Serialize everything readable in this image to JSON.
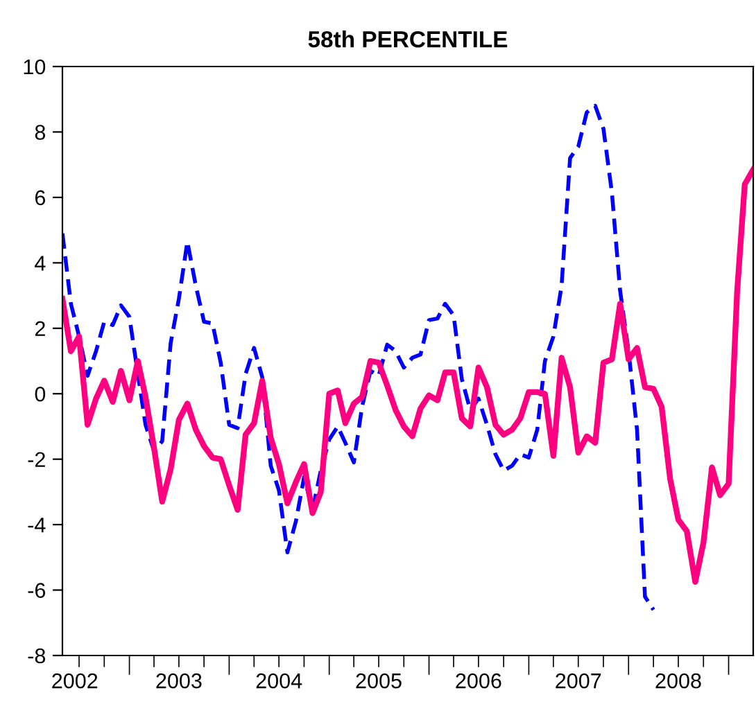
{
  "chart_data": {
    "type": "line",
    "title": "58th PERCENTILE",
    "x": [
      "2002-05",
      "2002-06",
      "2002-07",
      "2002-08",
      "2002-09",
      "2002-10",
      "2002-11",
      "2002-12",
      "2003-01",
      "2003-02",
      "2003-03",
      "2003-04",
      "2003-05",
      "2003-06",
      "2003-07",
      "2003-08",
      "2003-09",
      "2003-10",
      "2003-11",
      "2003-12",
      "2004-01",
      "2004-02",
      "2004-03",
      "2004-04",
      "2004-05",
      "2004-06",
      "2004-07",
      "2004-08",
      "2004-09",
      "2004-10",
      "2004-11",
      "2004-12",
      "2005-01",
      "2005-02",
      "2005-03",
      "2005-04",
      "2005-05",
      "2005-06",
      "2005-07",
      "2005-08",
      "2005-09",
      "2005-10",
      "2005-11",
      "2005-12",
      "2006-01",
      "2006-02",
      "2006-03",
      "2006-04",
      "2006-05",
      "2006-06",
      "2006-07",
      "2006-08",
      "2006-09",
      "2006-10",
      "2006-11",
      "2006-12",
      "2007-01",
      "2007-02",
      "2007-03",
      "2007-04",
      "2007-05",
      "2007-06",
      "2007-07",
      "2007-08",
      "2007-09",
      "2007-10",
      "2007-11",
      "2007-12",
      "2008-01",
      "2008-02",
      "2008-03",
      "2008-04",
      "2008-05",
      "2008-06",
      "2008-07",
      "2008-08",
      "2008-09",
      "2008-10",
      "2008-11",
      "2008-12",
      "2009-01",
      "2009-02",
      "2009-03",
      "2009-04"
    ],
    "series": [
      {
        "color": "#0000ff",
        "line_style": "dashed",
        "values": [
          4.9,
          2.75,
          1.75,
          0.55,
          1.3,
          2.2,
          2.1,
          2.7,
          2.35,
          0.6,
          -0.95,
          -1.75,
          -1.45,
          1.55,
          2.9,
          4.65,
          3.3,
          2.2,
          2.15,
          0.95,
          -0.95,
          -1.05,
          0.6,
          1.4,
          0.5,
          -2.2,
          -2.95,
          -4.85,
          -3.9,
          -2.55,
          -3.55,
          -2.35,
          -1.4,
          -1.0,
          -1.5,
          -2.1,
          -0.4,
          0.7,
          0.55,
          1.5,
          1.3,
          0.8,
          1.1,
          1.2,
          2.25,
          2.3,
          2.75,
          2.4,
          0.45,
          -0.5,
          -0.15,
          -0.95,
          -1.85,
          -2.35,
          -2.2,
          -1.85,
          -1.95,
          -1.1,
          1.0,
          1.75,
          3.3,
          7.2,
          7.55,
          8.6,
          8.8,
          8.1,
          6.15,
          3.15,
          1.3,
          -1.1,
          -6.2,
          -6.6,
          null,
          null,
          null,
          null,
          null,
          null,
          null,
          null,
          null,
          null,
          null,
          null
        ]
      },
      {
        "color": "#ff0080",
        "line_style": "solid",
        "values": [
          2.9,
          1.3,
          1.75,
          -0.95,
          -0.15,
          0.4,
          -0.25,
          0.7,
          -0.2,
          1.0,
          -0.1,
          -1.65,
          -3.3,
          -2.3,
          -0.8,
          -0.3,
          -1.1,
          -1.6,
          -1.95,
          -2.0,
          -2.8,
          -3.55,
          -1.25,
          -0.9,
          0.4,
          -1.35,
          -2.15,
          -3.35,
          -2.7,
          -2.15,
          -3.65,
          -3.0,
          0.0,
          0.1,
          -0.9,
          -0.3,
          -0.1,
          1.0,
          0.95,
          0.25,
          -0.5,
          -1.0,
          -1.3,
          -0.45,
          -0.05,
          -0.2,
          0.65,
          0.65,
          -0.75,
          -1.0,
          0.8,
          0.2,
          -0.95,
          -1.25,
          -1.1,
          -0.75,
          0.05,
          0.05,
          0.0,
          -1.9,
          1.1,
          0.2,
          -1.8,
          -1.3,
          -1.5,
          0.95,
          1.05,
          2.75,
          1.05,
          1.4,
          0.2,
          0.15,
          -0.4,
          -2.6,
          -3.85,
          -4.2,
          -5.75,
          -4.55,
          -2.25,
          -3.1,
          -2.75,
          3.1,
          6.4,
          6.85
        ]
      }
    ],
    "xlim": [
      "2002-05",
      "2009-04"
    ],
    "xticks": [
      {
        "value": "2002-06-15",
        "label": "2002"
      },
      {
        "value": "2003-07",
        "label": "2003"
      },
      {
        "value": "2004-07",
        "label": "2004"
      },
      {
        "value": "2005-07",
        "label": "2005"
      },
      {
        "value": "2006-07",
        "label": "2006"
      },
      {
        "value": "2007-07",
        "label": "2007"
      },
      {
        "value": "2008-07",
        "label": "2008"
      },
      {
        "value": "2002-07",
        "label": null
      },
      {
        "value": "2002-10",
        "label": null
      },
      {
        "value": "2003-01",
        "label": null
      },
      {
        "value": "2003-04",
        "label": null
      },
      {
        "value": "2003-07",
        "label": null
      },
      {
        "value": "2003-10",
        "label": null
      },
      {
        "value": "2004-01",
        "label": null
      },
      {
        "value": "2004-04",
        "label": null
      },
      {
        "value": "2004-07",
        "label": null
      },
      {
        "value": "2004-10",
        "label": null
      },
      {
        "value": "2005-01",
        "label": null
      },
      {
        "value": "2005-04",
        "label": null
      },
      {
        "value": "2005-07",
        "label": null
      },
      {
        "value": "2005-10",
        "label": null
      },
      {
        "value": "2006-01",
        "label": null
      },
      {
        "value": "2006-04",
        "label": null
      },
      {
        "value": "2006-07",
        "label": null
      },
      {
        "value": "2006-10",
        "label": null
      },
      {
        "value": "2007-01",
        "label": null
      },
      {
        "value": "2007-04",
        "label": null
      },
      {
        "value": "2007-07",
        "label": null
      },
      {
        "value": "2007-10",
        "label": null
      },
      {
        "value": "2008-01",
        "label": null
      },
      {
        "value": "2008-04",
        "label": null
      },
      {
        "value": "2008-07",
        "label": null
      },
      {
        "value": "2008-10",
        "label": null
      },
      {
        "value": "2009-01",
        "label": null
      }
    ],
    "ylim": [
      -8,
      10
    ],
    "yticks": [
      -8,
      -6,
      -4,
      -2,
      0,
      2,
      4,
      6,
      8,
      10
    ],
    "grid": false,
    "legend": false,
    "marker": "none"
  }
}
